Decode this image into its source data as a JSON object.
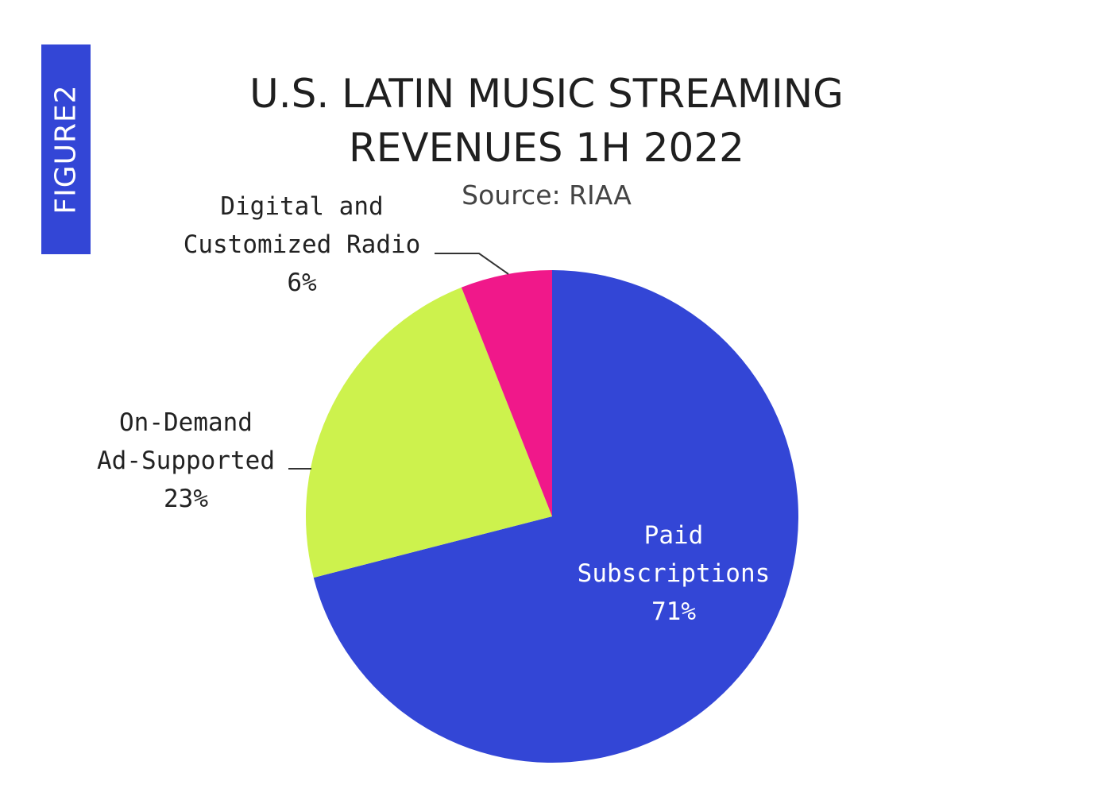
{
  "figure_tab": {
    "label": "FIGURE2"
  },
  "chart_data": {
    "type": "pie",
    "title": [
      "U.S. LATIN MUSIC STREAMING",
      "REVENUES 1H 2022"
    ],
    "subtitle": "Source: RIAA",
    "start_angle_deg": 0,
    "direction": "clockwise",
    "slices": [
      {
        "lines": [
          "Paid",
          "Subscriptions",
          "71%"
        ],
        "value": 71,
        "color": "#3346d6",
        "label_color": "#ffffff",
        "label_placement": "inside"
      },
      {
        "lines": [
          "On-Demand",
          "Ad-Supported",
          "23%"
        ],
        "value": 23,
        "color": "#cdf24d",
        "label_color": "#222222",
        "label_placement": "outside-left"
      },
      {
        "lines": [
          "Digital and",
          "Customized Radio",
          "6%"
        ],
        "value": 6,
        "color": "#f0188a",
        "label_color": "#222222",
        "label_placement": "outside-top-left"
      }
    ]
  }
}
